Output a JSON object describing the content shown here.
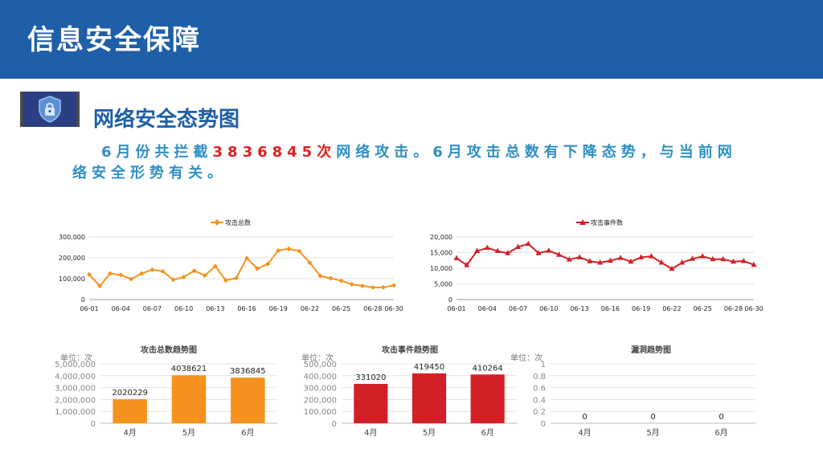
{
  "header": {
    "title": "信息安全保障"
  },
  "section": {
    "title": "网络安全态势图"
  },
  "summary": {
    "part1": "6月份共拦截",
    "highlight": "3836845次",
    "part2": "网络攻击。6月攻击总数有下降态势，与当前网络安全形势有关。"
  },
  "colors": {
    "orange": "#f5921e",
    "red": "#d32027",
    "header": "#1f5fa8",
    "text_blue": "#2e8fc4"
  },
  "icons": {
    "section": "shield-lock-icon"
  },
  "chart_data": [
    {
      "type": "line",
      "title": "",
      "legend": [
        "攻击总数"
      ],
      "legend_position": "top",
      "x_ticks": [
        "06-01",
        "06-04",
        "06-07",
        "06-10",
        "06-13",
        "06-16",
        "06-19",
        "06-22",
        "06-25",
        "06-28",
        "06-30"
      ],
      "x": [
        "06-01",
        "06-02",
        "06-03",
        "06-04",
        "06-05",
        "06-06",
        "06-07",
        "06-08",
        "06-09",
        "06-10",
        "06-11",
        "06-12",
        "06-13",
        "06-14",
        "06-15",
        "06-16",
        "06-17",
        "06-18",
        "06-19",
        "06-20",
        "06-21",
        "06-22",
        "06-23",
        "06-24",
        "06-25",
        "06-26",
        "06-27",
        "06-28",
        "06-29",
        "06-30"
      ],
      "series": [
        {
          "name": "攻击总数",
          "values": [
            120000,
            65000,
            125000,
            118000,
            98000,
            125000,
            143000,
            135000,
            95000,
            108000,
            138000,
            115000,
            160000,
            92000,
            103000,
            198000,
            148000,
            170000,
            235000,
            243000,
            232000,
            176000,
            113000,
            102000,
            90000,
            73000,
            66000,
            58000,
            58000,
            68000
          ]
        }
      ],
      "y_ticks": [
        "0",
        "100,000",
        "200,000",
        "300,000"
      ],
      "ylim": [
        0,
        300000
      ],
      "grid": true
    },
    {
      "type": "line",
      "title": "",
      "legend": [
        "攻击事件数"
      ],
      "legend_position": "top",
      "x_ticks": [
        "06-01",
        "06-04",
        "06-07",
        "06-10",
        "06-13",
        "06-16",
        "06-19",
        "06-22",
        "06-25",
        "06-28",
        "06-30"
      ],
      "x": [
        "06-01",
        "06-02",
        "06-03",
        "06-04",
        "06-05",
        "06-06",
        "06-07",
        "06-08",
        "06-09",
        "06-10",
        "06-11",
        "06-12",
        "06-13",
        "06-14",
        "06-15",
        "06-16",
        "06-17",
        "06-18",
        "06-19",
        "06-20",
        "06-21",
        "06-22",
        "06-23",
        "06-24",
        "06-25",
        "06-26",
        "06-27",
        "06-28",
        "06-29",
        "06-30"
      ],
      "series": [
        {
          "name": "攻击事件数",
          "values": [
            13200,
            11000,
            15500,
            16500,
            15500,
            14800,
            16800,
            17800,
            14800,
            15600,
            14300,
            12800,
            13500,
            12200,
            11800,
            12400,
            13300,
            12100,
            13500,
            13800,
            11800,
            9800,
            11800,
            13000,
            13800,
            12900,
            12900,
            12100,
            12300,
            11100
          ]
        }
      ],
      "y_ticks": [
        "0",
        "5,000",
        "10,000",
        "15,000",
        "20,000"
      ],
      "ylim": [
        0,
        20000
      ],
      "grid": true
    },
    {
      "type": "bar",
      "title": "攻击总数趋势图",
      "unit": "单位：次",
      "categories": [
        "4月",
        "5月",
        "6月"
      ],
      "values": [
        2020229,
        4038621,
        3836845
      ],
      "value_labels": [
        "2020229",
        "4038621",
        "3836845"
      ],
      "y_ticks": [
        "0",
        "1,000,000",
        "2,000,000",
        "3,000,000",
        "4,000,000",
        "5,000,000"
      ],
      "ylim": [
        0,
        5000000
      ],
      "grid": true
    },
    {
      "type": "bar",
      "title": "攻击事件趋势图",
      "unit": "单位：次",
      "categories": [
        "4月",
        "5月",
        "6月"
      ],
      "values": [
        331020,
        419450,
        410264
      ],
      "value_labels": [
        "331020",
        "419450",
        "410264"
      ],
      "y_ticks": [
        "0",
        "100,000",
        "200,000",
        "300,000",
        "400,000",
        "500,000"
      ],
      "ylim": [
        0,
        500000
      ],
      "grid": true
    },
    {
      "type": "bar",
      "title": "漏洞趋势图",
      "unit": "单位：次",
      "categories": [
        "4月",
        "5月",
        "6月"
      ],
      "values": [
        0,
        0,
        0
      ],
      "value_labels": [
        "0",
        "0",
        "0"
      ],
      "y_ticks": [
        "0",
        "0.2",
        "0.4",
        "0.6",
        "0.8",
        "1"
      ],
      "ylim": [
        0,
        1
      ],
      "grid": true
    }
  ]
}
